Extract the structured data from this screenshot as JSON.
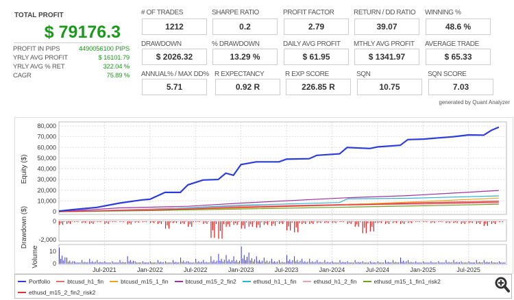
{
  "summary": {
    "total_profit_label": "TOTAL PROFIT",
    "total_profit_value": "$ 79176.3",
    "rows": [
      {
        "label": "PROFIT IN PIPS",
        "value": "4490056100 PIPS"
      },
      {
        "label": "YRLY AVG PROFIT",
        "value": "$ 16101.79"
      },
      {
        "label": "YRLY AVG % RET",
        "value": "322.04 %"
      },
      {
        "label": "CAGR",
        "value": "75.89 %"
      }
    ]
  },
  "stats": [
    {
      "label": "# OF TRADES",
      "value": "1212"
    },
    {
      "label": "SHARPE RATIO",
      "value": "0.2"
    },
    {
      "label": "PROFIT FACTOR",
      "value": "2.79"
    },
    {
      "label": "RETURN / DD RATIO",
      "value": "39.07"
    },
    {
      "label": "WINNING %",
      "value": "48.6 %"
    },
    {
      "label": "DRAWDOWN",
      "value": "$ 2026.32"
    },
    {
      "label": "% DRAWDOWN",
      "value": "13.29 %"
    },
    {
      "label": "DAILY AVG PROFIT",
      "value": "$ 61.95"
    },
    {
      "label": "MTHLY AVG PROFIT",
      "value": "$ 1341.97"
    },
    {
      "label": "AVERAGE TRADE",
      "value": "$ 65.33"
    },
    {
      "label": "ANNUAL% / MAX DD%",
      "value": "5.71"
    },
    {
      "label": "R EXPECTANCY",
      "value": "0.92 R"
    },
    {
      "label": "R EXP SCORE",
      "value": "226.85 R"
    },
    {
      "label": "SQN",
      "value": "10.75"
    },
    {
      "label": "SQN SCORE",
      "value": "7.03"
    }
  ],
  "generated_by": "generated by Quant Analyzer",
  "zoom_icon": "magnifier-plus-icon",
  "chart_data": {
    "type": "line",
    "x_ticks": [
      "Jul-2021",
      "Jan-2022",
      "Jul-2022",
      "Jan-2023",
      "Jul-2023",
      "Jan-2024",
      "Jul-2024",
      "Jan-2025",
      "Jul-2025"
    ],
    "x_range": [
      "2021-01",
      "2025-11"
    ],
    "grid": true,
    "legend_placement": "bottom",
    "equity": {
      "ylabel": "Equity ($)",
      "ylim": [
        0,
        80000
      ],
      "y_ticks": [
        "0",
        "10,000",
        "20,000",
        "30,000",
        "40,000",
        "50,000",
        "60,000",
        "70,000",
        "80,000"
      ],
      "series": [
        {
          "name": "Portfolio",
          "color": "#2b3bdc",
          "points": [
            [
              "2021-01",
              500
            ],
            [
              "2021-03",
              2000
            ],
            [
              "2021-06",
              4000
            ],
            [
              "2021-09",
              8000
            ],
            [
              "2021-12",
              11000
            ],
            [
              "2022-01",
              11600
            ],
            [
              "2022-03",
              18000
            ],
            [
              "2022-05",
              18000
            ],
            [
              "2022-06",
              25000
            ],
            [
              "2022-08",
              29600
            ],
            [
              "2022-10",
              30000
            ],
            [
              "2022-11",
              36000
            ],
            [
              "2022-12",
              34000
            ],
            [
              "2023-01",
              44000
            ],
            [
              "2023-03",
              46500
            ],
            [
              "2023-06",
              46500
            ],
            [
              "2023-07",
              49000
            ],
            [
              "2023-10",
              49500
            ],
            [
              "2023-11",
              52600
            ],
            [
              "2024-02",
              54000
            ],
            [
              "2024-03",
              60000
            ],
            [
              "2024-06",
              59000
            ],
            [
              "2024-07",
              60500
            ],
            [
              "2024-10",
              62000
            ],
            [
              "2024-11",
              67300
            ],
            [
              "2025-01",
              67800
            ],
            [
              "2025-05",
              70000
            ],
            [
              "2025-07",
              71700
            ],
            [
              "2025-09",
              71500
            ],
            [
              "2025-10",
              76000
            ],
            [
              "2025-11",
              79000
            ]
          ]
        },
        {
          "name": "btcusd_h1_fin",
          "color": "#e07070",
          "points": [
            [
              "2021-01",
              0
            ],
            [
              "2022-01",
              2500
            ],
            [
              "2023-01",
              5000
            ],
            [
              "2024-01",
              6500
            ],
            [
              "2025-01",
              8500
            ],
            [
              "2025-11",
              10000
            ]
          ]
        },
        {
          "name": "btcusd_m15_1_fin",
          "color": "#f0a020",
          "points": [
            [
              "2021-01",
              0
            ],
            [
              "2022-01",
              1500
            ],
            [
              "2023-01",
              3500
            ],
            [
              "2024-01",
              6000
            ],
            [
              "2025-01",
              9500
            ],
            [
              "2025-11",
              12700
            ]
          ]
        },
        {
          "name": "btcusd_m15_2_fin2",
          "color": "#a030a0",
          "points": [
            [
              "2021-01",
              0
            ],
            [
              "2021-09",
              3500
            ],
            [
              "2022-06",
              5000
            ],
            [
              "2023-01",
              8000
            ],
            [
              "2024-03",
              13000
            ],
            [
              "2024-11",
              15000
            ],
            [
              "2025-11",
              19800
            ]
          ]
        },
        {
          "name": "ethusd_h1_1_fin",
          "color": "#30b0d0",
          "points": [
            [
              "2021-01",
              0
            ],
            [
              "2022-01",
              2000
            ],
            [
              "2023-01",
              6000
            ],
            [
              "2024-02",
              8500
            ],
            [
              "2024-03",
              12000
            ],
            [
              "2024-11",
              12500
            ],
            [
              "2025-11",
              14700
            ]
          ]
        },
        {
          "name": "ethusd_h1_2_fin",
          "color": "#e8a0b8",
          "points": [
            [
              "2021-01",
              0
            ],
            [
              "2022-01",
              2000
            ],
            [
              "2023-01",
              4500
            ],
            [
              "2024-01",
              6000
            ],
            [
              "2025-01",
              7000
            ],
            [
              "2025-11",
              8000
            ]
          ]
        },
        {
          "name": "ethusd_m15_1_fin1_risk2",
          "color": "#70a020",
          "points": [
            [
              "2021-01",
              0
            ],
            [
              "2022-01",
              1000
            ],
            [
              "2023-01",
              2500
            ],
            [
              "2024-01",
              4000
            ],
            [
              "2025-01",
              5500
            ],
            [
              "2025-11",
              6900
            ]
          ]
        },
        {
          "name": "ethusd_m15_2_fin2_risk2",
          "color": "#e03030",
          "points": [
            [
              "2021-01",
              0
            ],
            [
              "2022-01",
              1500
            ],
            [
              "2023-01",
              4000
            ],
            [
              "2024-01",
              6000
            ],
            [
              "2025-01",
              7800
            ],
            [
              "2025-11",
              9000
            ]
          ]
        }
      ]
    },
    "drawdown": {
      "ylabel": "Drawdown ($)",
      "ylim": [
        -2000,
        0
      ],
      "y_ticks": [
        "0",
        "-2,000"
      ],
      "color": "#ee1111",
      "monthly_min": [
        -400,
        -300,
        -100,
        -200,
        -300,
        -100,
        -300,
        -100,
        -100,
        -350,
        -150,
        -100,
        -200,
        -300,
        -800,
        -200,
        -300,
        -600,
        -100,
        -300,
        -1800,
        -1900,
        -600,
        -400,
        -800,
        -600,
        -700,
        -400,
        -500,
        -300,
        -1000,
        -1200,
        -300,
        -300,
        -200,
        -200,
        -200,
        -100,
        -300,
        -600,
        -1300,
        -1100,
        -200,
        -300,
        -200,
        -300,
        -200,
        -100,
        -100,
        -200,
        -100,
        -200,
        -200,
        -300,
        -200,
        -300,
        -500,
        -300,
        -100
      ]
    },
    "volume": {
      "ylabel": "Volume",
      "ylim": [
        0,
        15
      ],
      "y_ticks": [
        "0",
        "10"
      ],
      "color": "#3030dd",
      "monthly_max": [
        13,
        5,
        2,
        3,
        4,
        3,
        2,
        2,
        3,
        6,
        2,
        2,
        2,
        3,
        2,
        3,
        5,
        2,
        4,
        3,
        6,
        8,
        7,
        6,
        14,
        9,
        6,
        5,
        4,
        3,
        7,
        6,
        4,
        4,
        3,
        3,
        2,
        3,
        2,
        3,
        2,
        2,
        2,
        3,
        3,
        5,
        3,
        2,
        2,
        2,
        2,
        3,
        3,
        2,
        2,
        3,
        3,
        2,
        2
      ]
    }
  }
}
